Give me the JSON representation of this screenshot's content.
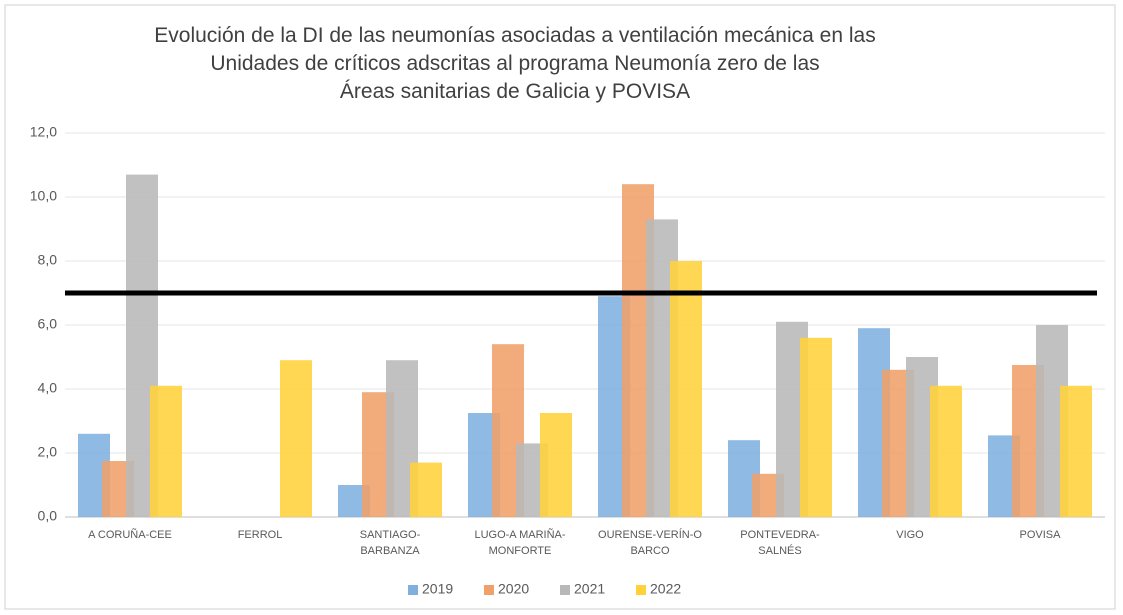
{
  "chart_data": {
    "type": "bar",
    "title": "Evolución de la DI de las neumonías asociadas a ventilación mecánica en las\nUnidades de críticos adscritas al programa Neumonía zero de las\nÁreas sanitarias de Galicia y POVISA",
    "categories": [
      "A CORUÑA-CEE",
      "FERROL",
      "SANTIAGO-\nBARBANZA",
      "LUGO-A MARIÑA-\nMONFORTE",
      "OURENSE-VERÍN-O\nBARCO",
      "PONTEVEDRA-\nSALNÉS",
      "VIGO",
      "POVISA"
    ],
    "series": [
      {
        "name": "2019",
        "color": "#7fb0e0",
        "values": [
          2.6,
          null,
          1.0,
          3.25,
          6.9,
          2.4,
          5.9,
          2.55
        ]
      },
      {
        "name": "2020",
        "color": "#f0a06a",
        "values": [
          1.75,
          null,
          3.9,
          5.4,
          10.4,
          1.35,
          4.6,
          4.75
        ]
      },
      {
        "name": "2021",
        "color": "#b8b8b8",
        "values": [
          10.7,
          null,
          4.9,
          2.3,
          9.3,
          6.1,
          5.0,
          6.0
        ]
      },
      {
        "name": "2022",
        "color": "#ffd23a",
        "values": [
          4.1,
          4.9,
          1.7,
          3.25,
          8.0,
          5.6,
          4.1,
          4.1
        ]
      }
    ],
    "ylim": [
      0,
      12
    ],
    "yticks": [
      {
        "value": 0,
        "label": "0,0"
      },
      {
        "value": 2,
        "label": "2,0"
      },
      {
        "value": 4,
        "label": "4,0"
      },
      {
        "value": 6,
        "label": "6,0"
      },
      {
        "value": 8,
        "label": "8,0"
      },
      {
        "value": 10,
        "label": "10,0"
      },
      {
        "value": 12,
        "label": "12,0"
      }
    ],
    "reference_line": 7,
    "grid": true,
    "legend": "bottom"
  }
}
